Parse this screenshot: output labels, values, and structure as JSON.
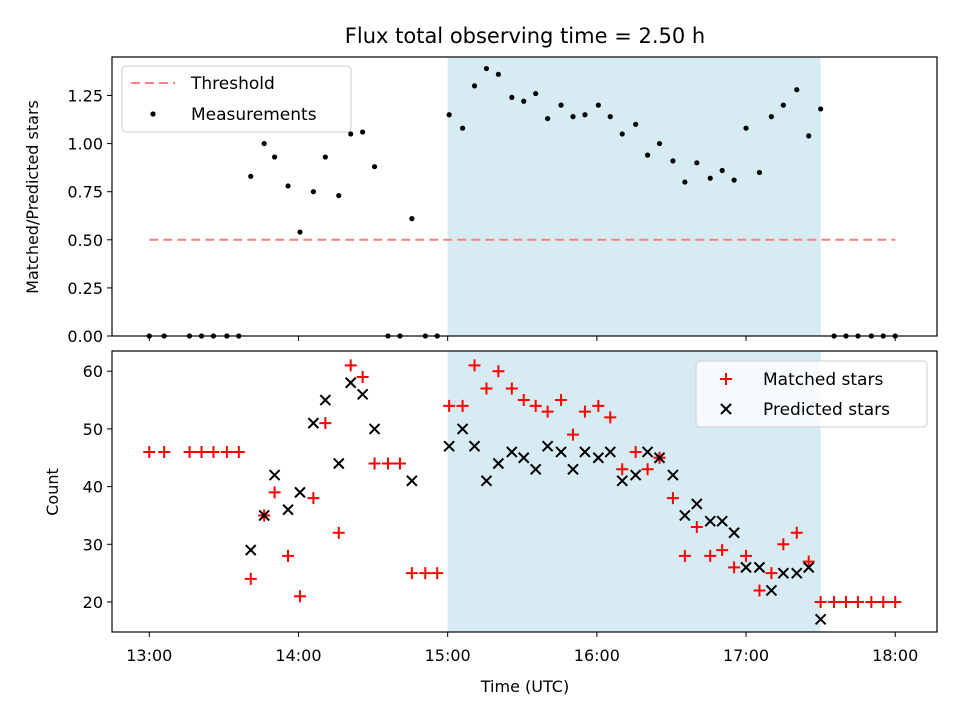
{
  "chart_data": [
    {
      "type": "scatter",
      "title": "Flux total observing time = 2.50 h",
      "xlabel": "",
      "ylabel": "Matched/Predicted stars",
      "x_unit": "hours (UTC)",
      "xlim": [
        12.75,
        18.28
      ],
      "ylim": [
        0,
        1.45
      ],
      "yticks": [
        0,
        0.25,
        0.5,
        0.75,
        1.0,
        1.25
      ],
      "ytick_labels": [
        "0.00",
        "0.25",
        "0.50",
        "0.75",
        "1.00",
        "1.25"
      ],
      "xticks": [
        13,
        14,
        15,
        16,
        17,
        18
      ],
      "grid": false,
      "legend": "top-left",
      "legend_entries": [
        "Threshold",
        "Measurements"
      ],
      "observing_window": {
        "x": [
          15.0,
          17.5
        ],
        "color": "#add8e6"
      },
      "threshold": {
        "name": "Threshold",
        "y": 0.5,
        "x": [
          13.0,
          18.0
        ],
        "color": "#ff7f7f",
        "style": "dashed"
      },
      "series": [
        {
          "name": "Measurements",
          "color": "#000000",
          "points": [
            [
              13.0,
              0
            ],
            [
              13.1,
              0
            ],
            [
              13.27,
              0
            ],
            [
              13.35,
              0
            ],
            [
              13.43,
              0
            ],
            [
              13.52,
              0
            ],
            [
              13.6,
              0
            ],
            [
              13.68,
              0.83
            ],
            [
              13.77,
              1.0
            ],
            [
              13.84,
              0.93
            ],
            [
              13.93,
              0.78
            ],
            [
              14.01,
              0.54
            ],
            [
              14.1,
              0.75
            ],
            [
              14.18,
              0.93
            ],
            [
              14.27,
              0.73
            ],
            [
              14.35,
              1.05
            ],
            [
              14.43,
              1.06
            ],
            [
              14.51,
              0.88
            ],
            [
              14.6,
              0
            ],
            [
              14.68,
              0
            ],
            [
              14.76,
              0.61
            ],
            [
              14.85,
              0
            ],
            [
              14.93,
              0
            ],
            [
              15.01,
              1.15
            ],
            [
              15.1,
              1.08
            ],
            [
              15.18,
              1.3
            ],
            [
              15.26,
              1.39
            ],
            [
              15.34,
              1.36
            ],
            [
              15.43,
              1.24
            ],
            [
              15.51,
              1.22
            ],
            [
              15.59,
              1.26
            ],
            [
              15.67,
              1.13
            ],
            [
              15.76,
              1.2
            ],
            [
              15.84,
              1.14
            ],
            [
              15.92,
              1.15
            ],
            [
              16.01,
              1.2
            ],
            [
              16.09,
              1.14
            ],
            [
              16.17,
              1.05
            ],
            [
              16.26,
              1.1
            ],
            [
              16.34,
              0.94
            ],
            [
              16.42,
              1.0
            ],
            [
              16.51,
              0.91
            ],
            [
              16.59,
              0.8
            ],
            [
              16.67,
              0.9
            ],
            [
              16.76,
              0.82
            ],
            [
              16.84,
              0.86
            ],
            [
              16.92,
              0.81
            ],
            [
              17.0,
              1.08
            ],
            [
              17.09,
              0.85
            ],
            [
              17.17,
              1.14
            ],
            [
              17.25,
              1.2
            ],
            [
              17.34,
              1.28
            ],
            [
              17.42,
              1.04
            ],
            [
              17.5,
              1.18
            ],
            [
              17.59,
              0
            ],
            [
              17.67,
              0
            ],
            [
              17.75,
              0
            ],
            [
              17.84,
              0
            ],
            [
              17.92,
              0
            ],
            [
              18.0,
              0
            ]
          ]
        }
      ]
    },
    {
      "type": "scatter",
      "title": "",
      "xlabel": "Time (UTC)",
      "ylabel": "Count",
      "x_unit": "hours (UTC)",
      "xlim": [
        12.75,
        18.28
      ],
      "ylim": [
        14.8,
        63.5
      ],
      "yticks": [
        20,
        30,
        40,
        50,
        60
      ],
      "ytick_labels": [
        "20",
        "30",
        "40",
        "50",
        "60"
      ],
      "xticks": [
        13,
        14,
        15,
        16,
        17,
        18
      ],
      "xtick_labels": [
        "13:00",
        "14:00",
        "15:00",
        "16:00",
        "17:00",
        "18:00"
      ],
      "grid": false,
      "legend": "top-right",
      "legend_entries": [
        "Matched stars",
        "Predicted stars"
      ],
      "observing_window": {
        "x": [
          15.0,
          17.5
        ],
        "color": "#add8e6"
      },
      "series": [
        {
          "name": "Matched stars",
          "marker": "plus",
          "color": "#ff0000",
          "points": [
            [
              13.0,
              46
            ],
            [
              13.1,
              46
            ],
            [
              13.27,
              46
            ],
            [
              13.35,
              46
            ],
            [
              13.43,
              46
            ],
            [
              13.52,
              46
            ],
            [
              13.6,
              46
            ],
            [
              13.68,
              24
            ],
            [
              13.77,
              35
            ],
            [
              13.84,
              39
            ],
            [
              13.93,
              28
            ],
            [
              14.01,
              21
            ],
            [
              14.1,
              38
            ],
            [
              14.18,
              51
            ],
            [
              14.27,
              32
            ],
            [
              14.35,
              61
            ],
            [
              14.43,
              59
            ],
            [
              14.51,
              44
            ],
            [
              14.6,
              44
            ],
            [
              14.68,
              44
            ],
            [
              14.76,
              25
            ],
            [
              14.85,
              25
            ],
            [
              14.93,
              25
            ],
            [
              15.01,
              54
            ],
            [
              15.1,
              54
            ],
            [
              15.18,
              61
            ],
            [
              15.26,
              57
            ],
            [
              15.34,
              60
            ],
            [
              15.43,
              57
            ],
            [
              15.51,
              55
            ],
            [
              15.59,
              54
            ],
            [
              15.67,
              53
            ],
            [
              15.76,
              55
            ],
            [
              15.84,
              49
            ],
            [
              15.92,
              53
            ],
            [
              16.01,
              54
            ],
            [
              16.09,
              52
            ],
            [
              16.17,
              43
            ],
            [
              16.26,
              46
            ],
            [
              16.34,
              43
            ],
            [
              16.42,
              45
            ],
            [
              16.51,
              38
            ],
            [
              16.59,
              28
            ],
            [
              16.67,
              33
            ],
            [
              16.76,
              28
            ],
            [
              16.84,
              29
            ],
            [
              16.92,
              26
            ],
            [
              17.0,
              28
            ],
            [
              17.09,
              22
            ],
            [
              17.17,
              25
            ],
            [
              17.25,
              30
            ],
            [
              17.34,
              32
            ],
            [
              17.42,
              27
            ],
            [
              17.5,
              20
            ],
            [
              17.59,
              20
            ],
            [
              17.67,
              20
            ],
            [
              17.75,
              20
            ],
            [
              17.84,
              20
            ],
            [
              17.92,
              20
            ],
            [
              18.0,
              20
            ]
          ]
        },
        {
          "name": "Predicted stars",
          "marker": "x",
          "color": "#000000",
          "points": [
            [
              13.68,
              29
            ],
            [
              13.77,
              35
            ],
            [
              13.84,
              42
            ],
            [
              13.93,
              36
            ],
            [
              14.01,
              39
            ],
            [
              14.1,
              51
            ],
            [
              14.18,
              55
            ],
            [
              14.27,
              44
            ],
            [
              14.35,
              58
            ],
            [
              14.43,
              56
            ],
            [
              14.51,
              50
            ],
            [
              14.76,
              41
            ],
            [
              15.01,
              47
            ],
            [
              15.1,
              50
            ],
            [
              15.18,
              47
            ],
            [
              15.26,
              41
            ],
            [
              15.34,
              44
            ],
            [
              15.43,
              46
            ],
            [
              15.51,
              45
            ],
            [
              15.59,
              43
            ],
            [
              15.67,
              47
            ],
            [
              15.76,
              46
            ],
            [
              15.84,
              43
            ],
            [
              15.92,
              46
            ],
            [
              16.01,
              45
            ],
            [
              16.09,
              46
            ],
            [
              16.17,
              41
            ],
            [
              16.26,
              42
            ],
            [
              16.34,
              46
            ],
            [
              16.42,
              45
            ],
            [
              16.51,
              42
            ],
            [
              16.59,
              35
            ],
            [
              16.67,
              37
            ],
            [
              16.76,
              34
            ],
            [
              16.84,
              34
            ],
            [
              16.92,
              32
            ],
            [
              17.0,
              26
            ],
            [
              17.09,
              26
            ],
            [
              17.17,
              22
            ],
            [
              17.25,
              25
            ],
            [
              17.34,
              25
            ],
            [
              17.42,
              26
            ],
            [
              17.5,
              17
            ]
          ]
        }
      ]
    }
  ]
}
